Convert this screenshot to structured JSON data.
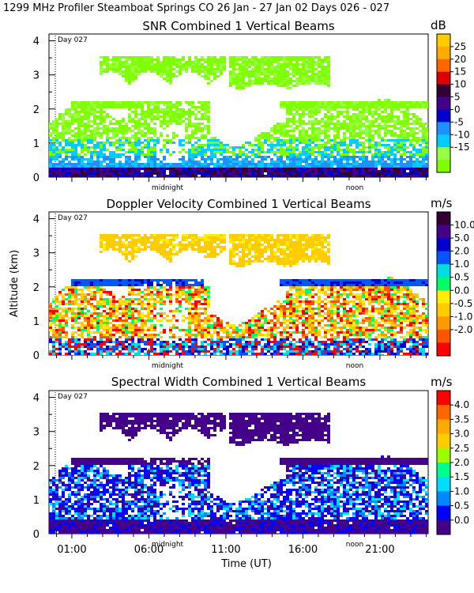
{
  "header": "1299 MHz Profiler  Steamboat Springs CO  26 Jan - 27 Jan 02 Days 026 - 027",
  "colors": {
    "snr": [
      "#7fff00",
      "#99ff44",
      "#00ccff",
      "#1e90ff",
      "#0000cc",
      "#440088",
      "#330033",
      "#dd0000",
      "#ff6600",
      "#ffaa00",
      "#ffcc00"
    ],
    "dop": [
      "#ff0000",
      "#ff5500",
      "#ff9900",
      "#ffcc00",
      "#ffee00",
      "#00ff66",
      "#00dddd",
      "#0055ff",
      "#0000cc",
      "#440088",
      "#330033"
    ],
    "sw": [
      "#440088",
      "#0000ff",
      "#0088ff",
      "#00ddff",
      "#00ff88",
      "#99ff00",
      "#ffcc00",
      "#ffaa00",
      "#ff6600",
      "#ff0000"
    ]
  },
  "chart_data": [
    {
      "type": "heatmap",
      "title": "SNR Combined 1 Vertical Beams",
      "ylabel": "",
      "ylim": [
        0,
        4.2
      ],
      "yticks": [
        "0",
        "1",
        "2",
        "3",
        "4"
      ],
      "day_marker": "Day 027",
      "inner_labels": {
        "midnight": "midnight",
        "noon": "noon"
      },
      "colorbar": {
        "unit": "dB",
        "labels": [
          "25",
          "20",
          "15",
          "10",
          "5",
          "0",
          "-5",
          "-10",
          "-15"
        ]
      }
    },
    {
      "type": "heatmap",
      "title": "Doppler Velocity Combined 1 Vertical Beams",
      "ylabel": "Altitude (km)",
      "ylim": [
        0,
        4.2
      ],
      "yticks": [
        "0",
        "1",
        "2",
        "3",
        "4"
      ],
      "day_marker": "Day 027",
      "inner_labels": {
        "midnight": "midnight",
        "noon": "noon"
      },
      "colorbar": {
        "unit": "m/s",
        "labels": [
          "10.0",
          "5.0",
          "2.0",
          "1.0",
          "0.5",
          "0.0",
          "-0.5",
          "-1.0",
          "-2.0"
        ]
      }
    },
    {
      "type": "heatmap",
      "title": "Spectral Width Combined 1 Vertical Beams",
      "ylabel": "",
      "ylim": [
        0,
        4.2
      ],
      "yticks": [
        "0",
        "1",
        "2",
        "3",
        "4"
      ],
      "day_marker": "Day 027",
      "inner_labels": {
        "midnight": "midnight",
        "noon": "noon"
      },
      "colorbar": {
        "unit": "m/s",
        "labels": [
          "4.0",
          "3.5",
          "3.0",
          "2.5",
          "2.0",
          "1.5",
          "1.0",
          "0.5",
          "0.0"
        ]
      },
      "xlabel": "Time (UT)",
      "xticks": [
        "01:00",
        "06:00",
        "11:00",
        "16:00",
        "21:00"
      ]
    }
  ]
}
